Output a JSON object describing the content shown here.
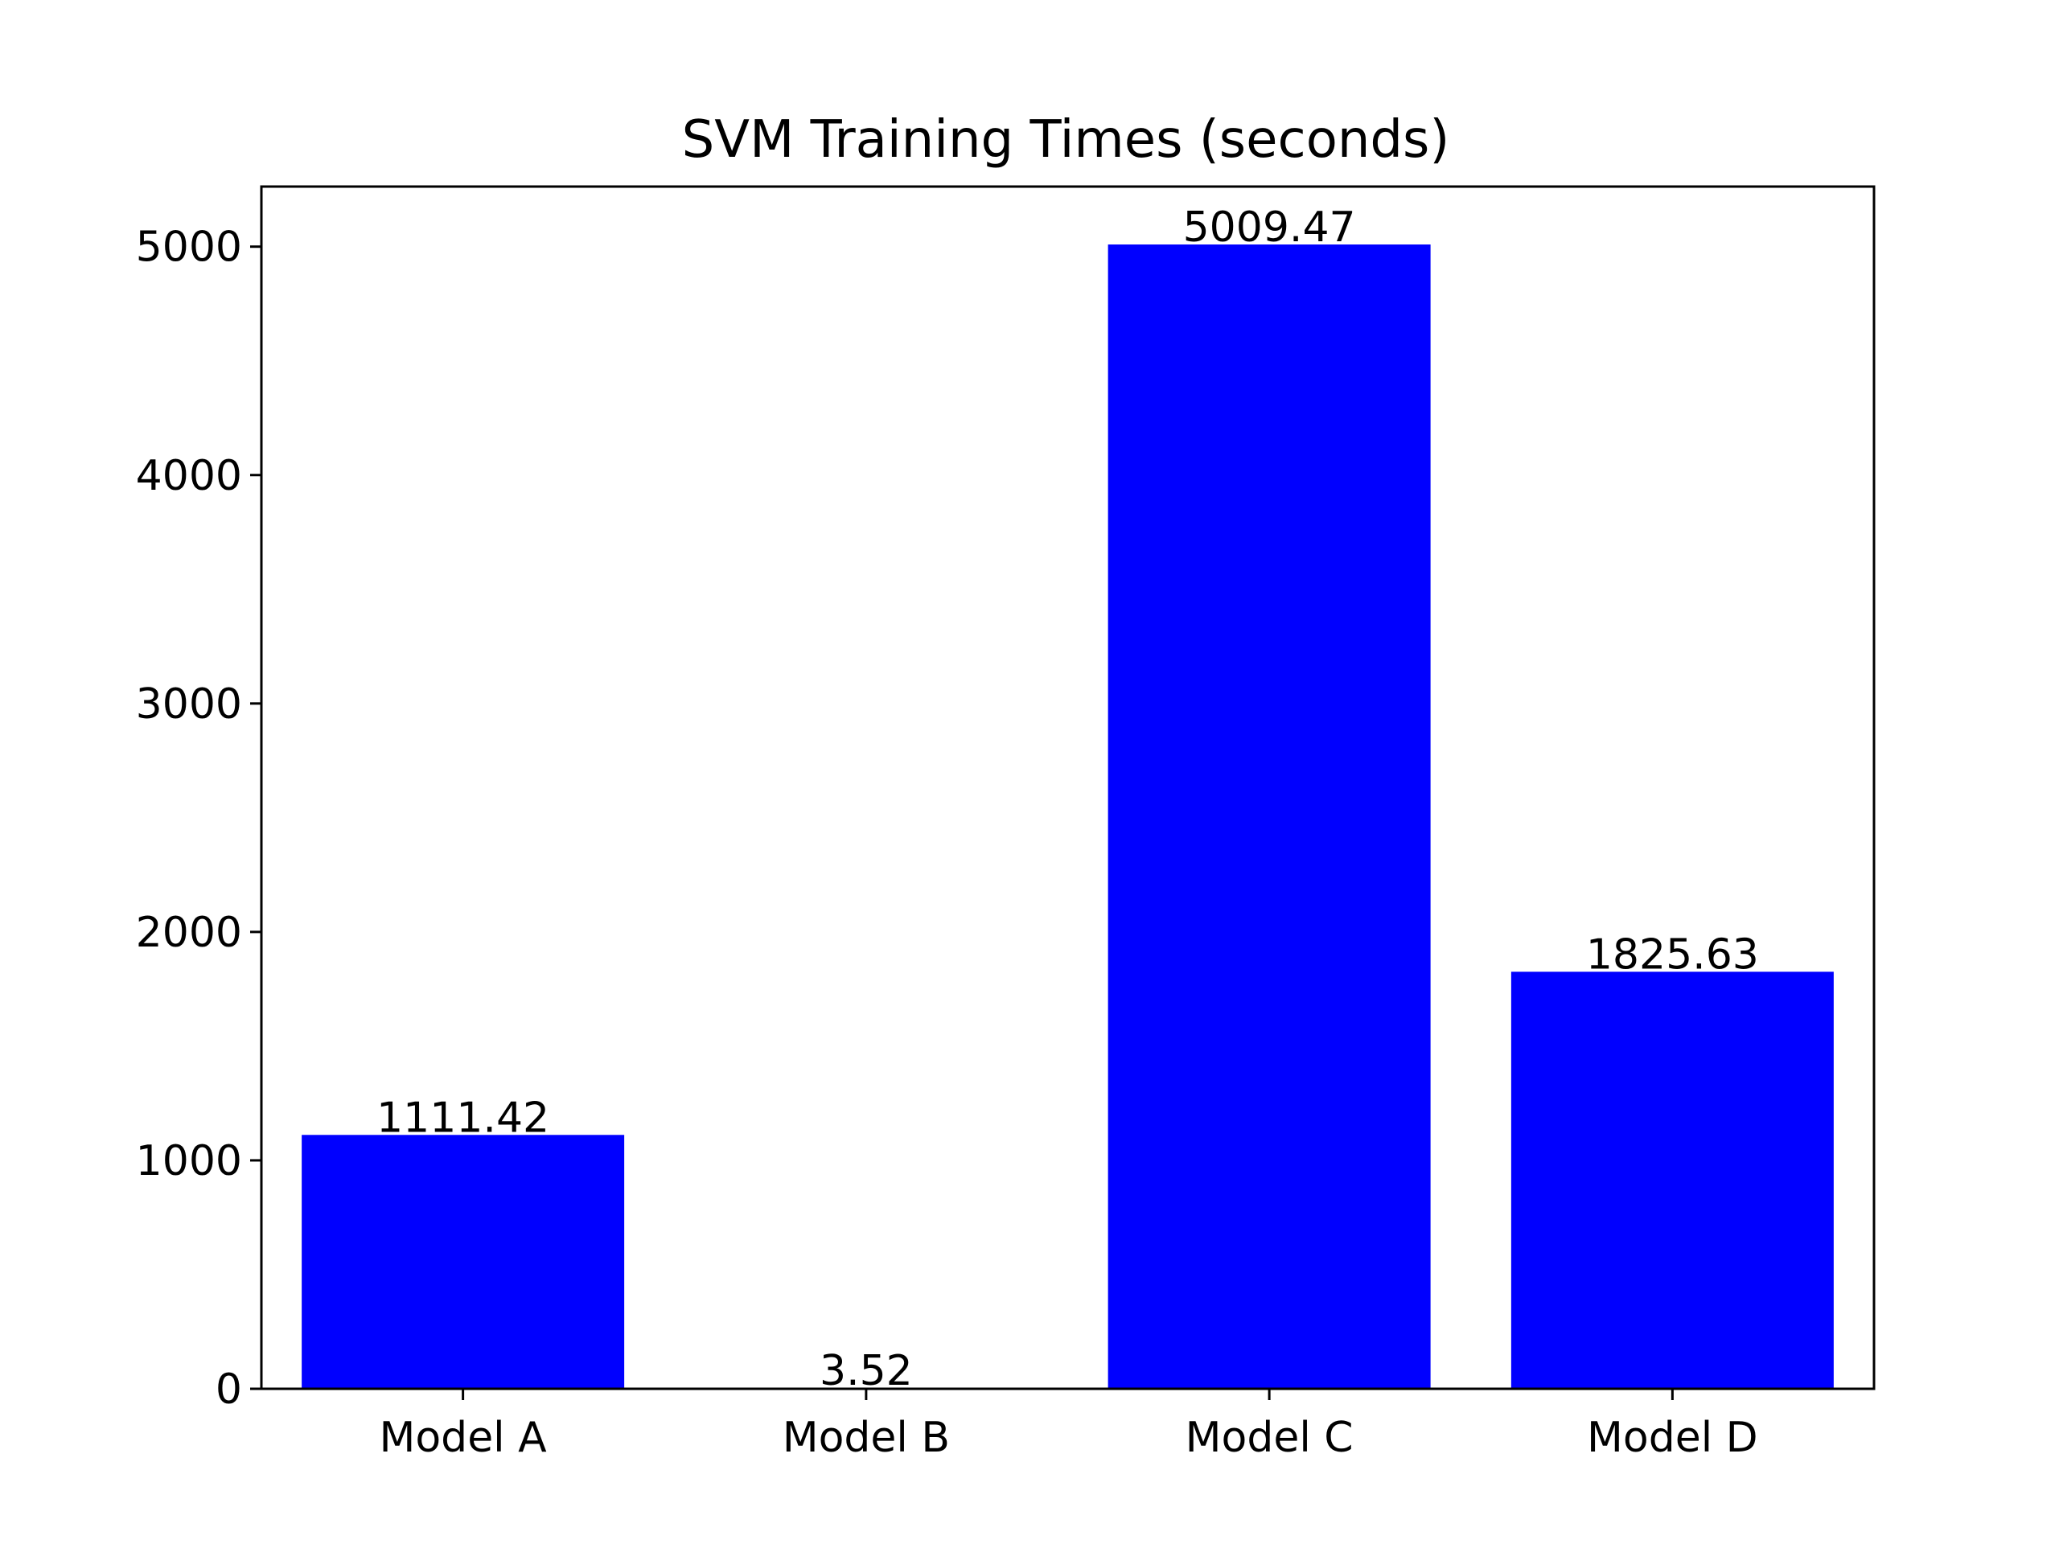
{
  "chart_data": {
    "type": "bar",
    "title": "SVM Training Times (seconds)",
    "xlabel": "",
    "ylabel": "",
    "categories": [
      "Model A",
      "Model B",
      "Model C",
      "Model D"
    ],
    "values": [
      1111.42,
      3.52,
      5009.47,
      1825.63
    ],
    "value_labels": [
      "1111.42",
      "3.52",
      "5009.47",
      "1825.63"
    ],
    "ylim": [
      0,
      5263
    ],
    "yticks": [
      0,
      1000,
      2000,
      3000,
      4000,
      5000
    ],
    "ytick_labels": [
      "0",
      "1000",
      "2000",
      "3000",
      "4000",
      "5000"
    ],
    "bar_color": "#0000ff",
    "grid": false,
    "legend": "none"
  }
}
